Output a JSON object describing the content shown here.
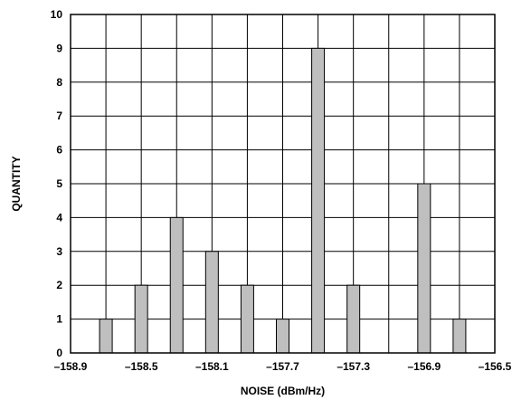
{
  "chart_data": {
    "type": "bar",
    "title": "",
    "xlabel": "NOISE (dBm/Hz)",
    "ylabel": "QUANTITY",
    "xlim": [
      -158.9,
      -156.5
    ],
    "ylim": [
      0,
      10
    ],
    "x_tick_labels": [
      "–158.9",
      "–158.5",
      "–158.1",
      "–157.7",
      "–157.3",
      "–156.9",
      "–156.5"
    ],
    "y_tick_labels": [
      "0",
      "1",
      "2",
      "3",
      "4",
      "5",
      "6",
      "7",
      "8",
      "9",
      "10"
    ],
    "grid": true,
    "bar_color": "#bfbfbf",
    "x": [
      -158.7,
      -158.5,
      -158.3,
      -158.1,
      -157.9,
      -157.7,
      -157.5,
      -157.3,
      -156.9,
      -156.7
    ],
    "values": [
      1,
      2,
      4,
      3,
      2,
      1,
      9,
      2,
      5,
      1
    ]
  }
}
